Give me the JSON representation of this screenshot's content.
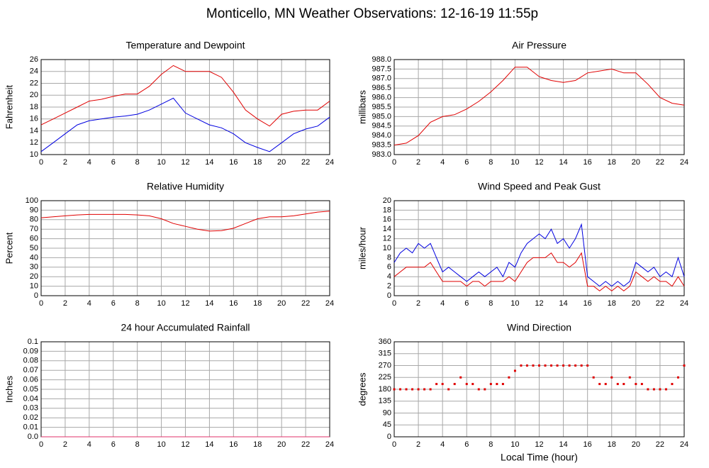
{
  "title": "Monticello, MN Weather Observations: 12-16-19 11:55p",
  "chart_data": [
    {
      "type": "line",
      "title": "Temperature and Dewpoint",
      "ylabel": "Fahrenheit",
      "x": [
        0,
        1,
        2,
        3,
        4,
        5,
        6,
        7,
        8,
        9,
        10,
        11,
        12,
        13,
        14,
        15,
        16,
        17,
        18,
        19,
        20,
        21,
        22,
        23,
        24
      ],
      "series": [
        {
          "color": "#e00000",
          "values": [
            15,
            16,
            17,
            18,
            19,
            19.3,
            19.8,
            20.2,
            20.2,
            21.5,
            23.5,
            25,
            24,
            24,
            24,
            23,
            20.5,
            17.5,
            16,
            14.8,
            16.8,
            17.3,
            17.5,
            17.5,
            19
          ]
        },
        {
          "color": "#0000e0",
          "values": [
            10.5,
            12,
            13.5,
            15,
            15.7,
            16,
            16.3,
            16.5,
            16.8,
            17.5,
            18.5,
            19.5,
            17,
            16,
            15,
            14.5,
            13.5,
            12,
            11.2,
            10.5,
            12,
            13.5,
            14.3,
            14.8,
            16.3
          ]
        }
      ],
      "xlim": [
        0,
        24
      ],
      "xticks": [
        0,
        2,
        4,
        6,
        8,
        10,
        12,
        14,
        16,
        18,
        20,
        22,
        24
      ],
      "ylim": [
        10,
        26
      ],
      "yticks": [
        10,
        12,
        14,
        16,
        18,
        20,
        22,
        24,
        26
      ],
      "grid": true
    },
    {
      "type": "line",
      "title": "Air Pressure",
      "ylabel": "millibars",
      "x": [
        0,
        1,
        2,
        3,
        4,
        5,
        6,
        7,
        8,
        9,
        10,
        11,
        12,
        13,
        14,
        15,
        16,
        17,
        18,
        19,
        20,
        21,
        22,
        23,
        24
      ],
      "series": [
        {
          "color": "#e00000",
          "values": [
            983.5,
            983.6,
            984,
            984.7,
            985,
            985.1,
            985.4,
            985.8,
            986.3,
            986.9,
            987.6,
            987.6,
            987.1,
            986.9,
            986.8,
            986.9,
            987.3,
            987.4,
            987.5,
            987.3,
            987.3,
            986.7,
            986,
            985.7,
            985.6
          ]
        }
      ],
      "xlim": [
        0,
        24
      ],
      "xticks": [
        0,
        2,
        4,
        6,
        8,
        10,
        12,
        14,
        16,
        18,
        20,
        22,
        24
      ],
      "ylim": [
        983,
        988
      ],
      "yticks": [
        {
          "value": 983,
          "label": "983.0"
        },
        983.5,
        {
          "value": 984,
          "label": "984.0"
        },
        984.5,
        {
          "value": 985,
          "label": "985.0"
        },
        985.5,
        {
          "value": 986,
          "label": "986.0"
        },
        986.5,
        {
          "value": 987,
          "label": "987.0"
        },
        987.5,
        {
          "value": 988,
          "label": "988.0"
        }
      ],
      "grid": true
    },
    {
      "type": "line",
      "title": "Relative Humidity",
      "ylabel": "Percent",
      "x": [
        0,
        1,
        2,
        3,
        4,
        5,
        6,
        7,
        8,
        9,
        10,
        11,
        12,
        13,
        14,
        15,
        16,
        17,
        18,
        19,
        20,
        21,
        22,
        23,
        24
      ],
      "series": [
        {
          "color": "#e00000",
          "values": [
            82,
            83,
            84,
            85,
            85.5,
            85.5,
            85.5,
            85.5,
            85,
            84,
            81,
            76,
            73,
            70,
            68,
            68.5,
            71,
            76,
            81,
            83,
            83,
            84,
            86,
            88,
            89
          ]
        }
      ],
      "xlim": [
        0,
        24
      ],
      "xticks": [
        0,
        2,
        4,
        6,
        8,
        10,
        12,
        14,
        16,
        18,
        20,
        22,
        24
      ],
      "ylim": [
        0,
        100
      ],
      "yticks": [
        0,
        10,
        20,
        30,
        40,
        50,
        60,
        70,
        80,
        90,
        100
      ],
      "grid": true
    },
    {
      "type": "line",
      "title": "Wind Speed and Peak Gust",
      "ylabel": "miles/hour",
      "x": [
        0,
        0.5,
        1,
        1.5,
        2,
        2.5,
        3,
        3.5,
        4,
        4.5,
        5,
        5.5,
        6,
        6.5,
        7,
        7.5,
        8,
        8.5,
        9,
        9.5,
        10,
        10.5,
        11,
        11.5,
        12,
        12.5,
        13,
        13.5,
        14,
        14.5,
        15,
        15.5,
        16,
        16.5,
        17,
        17.5,
        18,
        18.5,
        19,
        19.5,
        20,
        20.5,
        21,
        21.5,
        22,
        22.5,
        23,
        23.5,
        24
      ],
      "series": [
        {
          "color": "#0000e0",
          "values": [
            7,
            9,
            10,
            9,
            11,
            10,
            11,
            8,
            5,
            6,
            5,
            4,
            3,
            4,
            5,
            4,
            5,
            6,
            4,
            7,
            6,
            9,
            11,
            12,
            13,
            12,
            14,
            11,
            12,
            10,
            12,
            15,
            4,
            3,
            2,
            3,
            2,
            3,
            2,
            3,
            7,
            6,
            5,
            6,
            4,
            5,
            4,
            8,
            4
          ]
        },
        {
          "color": "#e00000",
          "values": [
            4,
            5,
            6,
            6,
            6,
            6,
            7,
            5,
            3,
            3,
            3,
            3,
            2,
            3,
            3,
            2,
            3,
            3,
            3,
            4,
            3,
            5,
            7,
            8,
            8,
            8,
            9,
            7,
            7,
            6,
            7,
            9,
            2,
            2,
            1,
            2,
            1,
            2,
            1,
            2,
            5,
            4,
            3,
            4,
            3,
            3,
            2,
            4,
            2
          ]
        }
      ],
      "xlim": [
        0,
        24
      ],
      "xticks": [
        0,
        2,
        4,
        6,
        8,
        10,
        12,
        14,
        16,
        18,
        20,
        22,
        24
      ],
      "ylim": [
        0,
        20
      ],
      "yticks": [
        0,
        2,
        4,
        6,
        8,
        10,
        12,
        14,
        16,
        18,
        20
      ],
      "grid": true
    },
    {
      "type": "line",
      "title": "24 hour Accumulated Rainfall",
      "ylabel": "Inches",
      "x": [
        0,
        24
      ],
      "series": [
        {
          "color": "#e0306a",
          "values": [
            0,
            0
          ]
        }
      ],
      "xlim": [
        0,
        24
      ],
      "xticks": [
        0,
        2,
        4,
        6,
        8,
        10,
        12,
        14,
        16,
        18,
        20,
        22,
        24
      ],
      "ylim": [
        0,
        0.1
      ],
      "yticks": [
        {
          "value": 0,
          "label": "0.0"
        },
        0.01,
        0.02,
        0.03,
        0.04,
        0.05,
        0.06,
        0.07,
        0.08,
        0.09,
        0.1
      ],
      "grid": true
    },
    {
      "type": "scatter",
      "title": "Wind Direction",
      "ylabel": "degrees",
      "xlabel": "Local Time (hour)",
      "x": [
        0,
        0.5,
        1,
        1.5,
        2,
        2.5,
        3,
        3.5,
        4,
        4.5,
        5,
        5.5,
        6,
        6.5,
        7,
        7.5,
        8,
        8.5,
        9,
        9.5,
        10,
        10.5,
        11,
        11.5,
        12,
        12.5,
        13,
        13.5,
        14,
        14.5,
        15,
        15.5,
        16,
        16.5,
        17,
        17.5,
        18,
        18.5,
        19,
        19.5,
        20,
        20.5,
        21,
        21.5,
        22,
        22.5,
        23,
        23.5,
        24
      ],
      "values": [
        180,
        180,
        180,
        180,
        180,
        180,
        180,
        200,
        200,
        180,
        200,
        225,
        200,
        200,
        180,
        180,
        200,
        200,
        200,
        225,
        250,
        270,
        270,
        270,
        270,
        270,
        270,
        270,
        270,
        270,
        270,
        270,
        270,
        225,
        200,
        200,
        225,
        200,
        200,
        225,
        200,
        200,
        180,
        180,
        180,
        180,
        200,
        225,
        270
      ],
      "color": "#e00000",
      "xlim": [
        0,
        24
      ],
      "xticks": [
        0,
        2,
        4,
        6,
        8,
        10,
        12,
        14,
        16,
        18,
        20,
        22,
        24
      ],
      "ylim": [
        0,
        360
      ],
      "yticks": [
        0,
        45,
        90,
        135,
        180,
        225,
        270,
        315,
        360
      ],
      "grid": true
    }
  ]
}
